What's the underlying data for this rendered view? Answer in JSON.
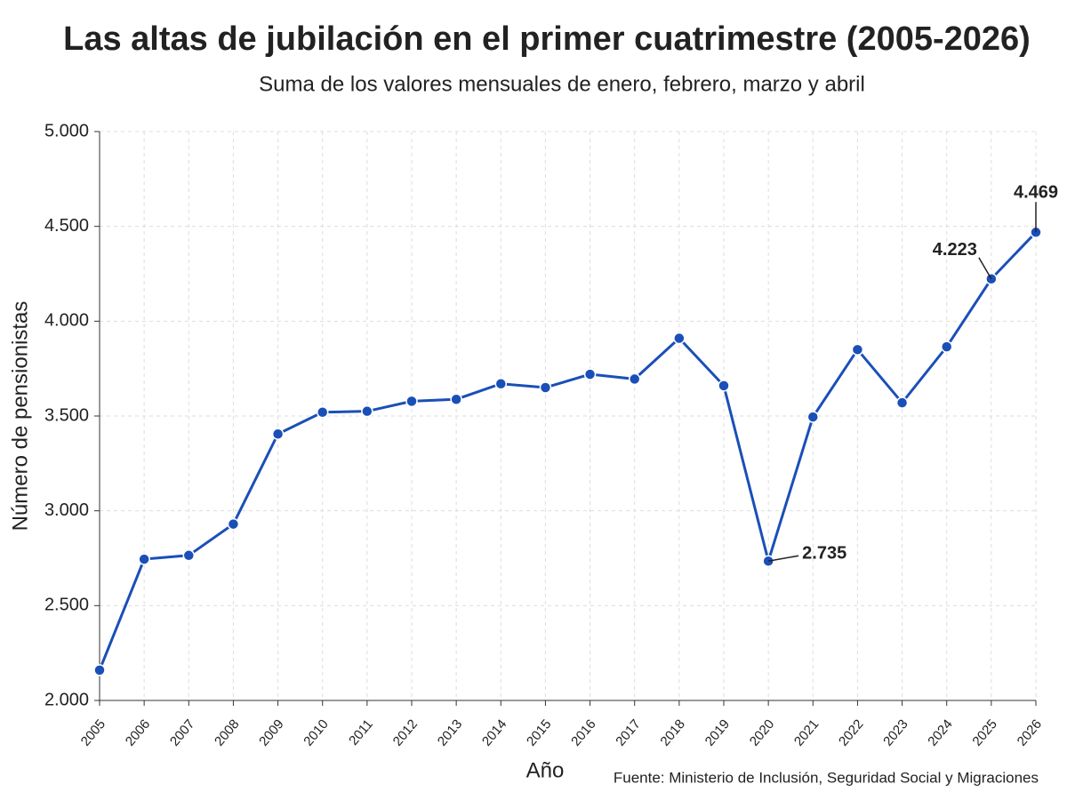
{
  "chart_data": {
    "type": "line",
    "title": "Las altas de jubilación en el primer cuatrimestre (2005-2026)",
    "subtitle": "Suma de los valores mensuales de enero, febrero, marzo y abril",
    "x_label": "Año",
    "y_label": "Número de pensionistas",
    "source": "Fuente: Ministerio de Inclusión, Seguridad Social y Migraciones",
    "categories": [
      "2005",
      "2006",
      "2007",
      "2008",
      "2009",
      "2010",
      "2011",
      "2012",
      "2013",
      "2014",
      "2015",
      "2016",
      "2017",
      "2018",
      "2019",
      "2020",
      "2021",
      "2022",
      "2023",
      "2024",
      "2025",
      "2026"
    ],
    "series": [
      {
        "name": "Altas de jubilación",
        "color": "#1a4fb8",
        "values": [
          2160,
          2745,
          2765,
          2930,
          3405,
          3520,
          3525,
          3578,
          3588,
          3670,
          3650,
          3720,
          3695,
          3910,
          3660,
          2735,
          3495,
          3850,
          3570,
          3865,
          4223,
          4469
        ],
        "value_labels": [
          null,
          null,
          null,
          null,
          null,
          null,
          null,
          null,
          null,
          null,
          null,
          null,
          null,
          null,
          null,
          "2.735",
          null,
          null,
          null,
          null,
          "4.223",
          "4.469"
        ]
      }
    ],
    "ylim": [
      2000,
      5000
    ],
    "yticks": [
      {
        "value": 2000,
        "label": "2.000"
      },
      {
        "value": 2500,
        "label": "2.500"
      },
      {
        "value": 3000,
        "label": "3.000"
      },
      {
        "value": 3500,
        "label": "3.500"
      },
      {
        "value": 4000,
        "label": "4.000"
      },
      {
        "value": 4500,
        "label": "4.500"
      },
      {
        "value": 5000,
        "label": "5.000"
      }
    ],
    "grid": true
  }
}
